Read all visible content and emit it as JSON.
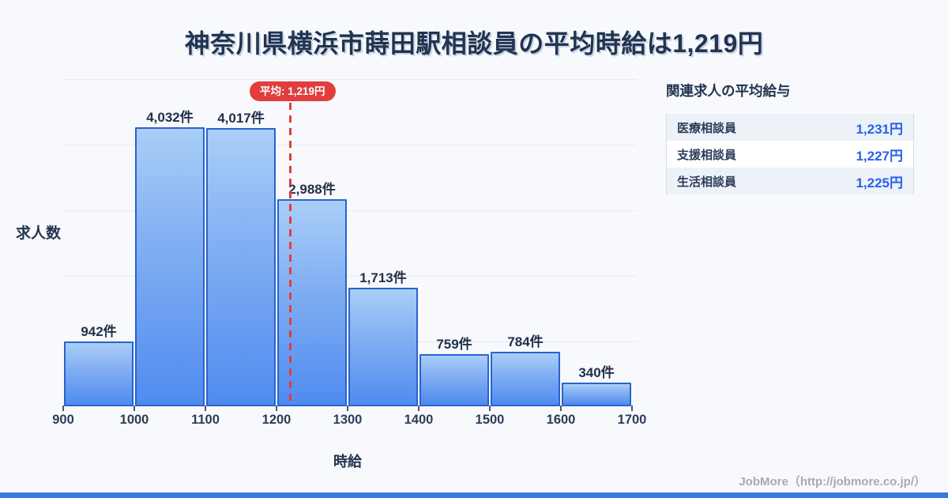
{
  "title": "神奈川県横浜市蒔田駅相談員の平均時給は1,219円",
  "chart_data": {
    "type": "bar",
    "subtype": "histogram",
    "bin_edges": [
      900,
      1000,
      1100,
      1200,
      1300,
      1400,
      1500,
      1600,
      1700
    ],
    "values": [
      942,
      4032,
      4017,
      2988,
      1713,
      759,
      784,
      340
    ],
    "bar_labels": [
      "942件",
      "4,032件",
      "4,017件",
      "2,988件",
      "1,713件",
      "759件",
      "784件",
      "340件"
    ],
    "x_ticks": [
      "900",
      "1000",
      "1100",
      "1200",
      "1300",
      "1400",
      "1500",
      "1600",
      "1700"
    ],
    "xlabel": "時給",
    "ylabel": "求人数",
    "ylim": [
      0,
      5000
    ],
    "grid": "horizontal",
    "average": {
      "value": 1219,
      "label": "平均: 1,219円"
    },
    "colors": {
      "bar_fill_top": "#aacef8",
      "bar_fill_bottom": "#4f8bf0",
      "bar_border": "#2a63cc",
      "average_line": "#e23d3d",
      "label_text": "#22344f"
    }
  },
  "side_panel": {
    "title": "関連求人の平均給与",
    "rows": [
      {
        "label": "医療相談員",
        "value": "1,231円"
      },
      {
        "label": "支援相談員",
        "value": "1,227円"
      },
      {
        "label": "生活相談員",
        "value": "1,225円"
      }
    ],
    "value_color": "#2563eb"
  },
  "footer": {
    "credit": "JobMore（http://jobmore.co.jp/）",
    "bar_color": "#3b78e0"
  },
  "background_color": "#f8f9fc"
}
